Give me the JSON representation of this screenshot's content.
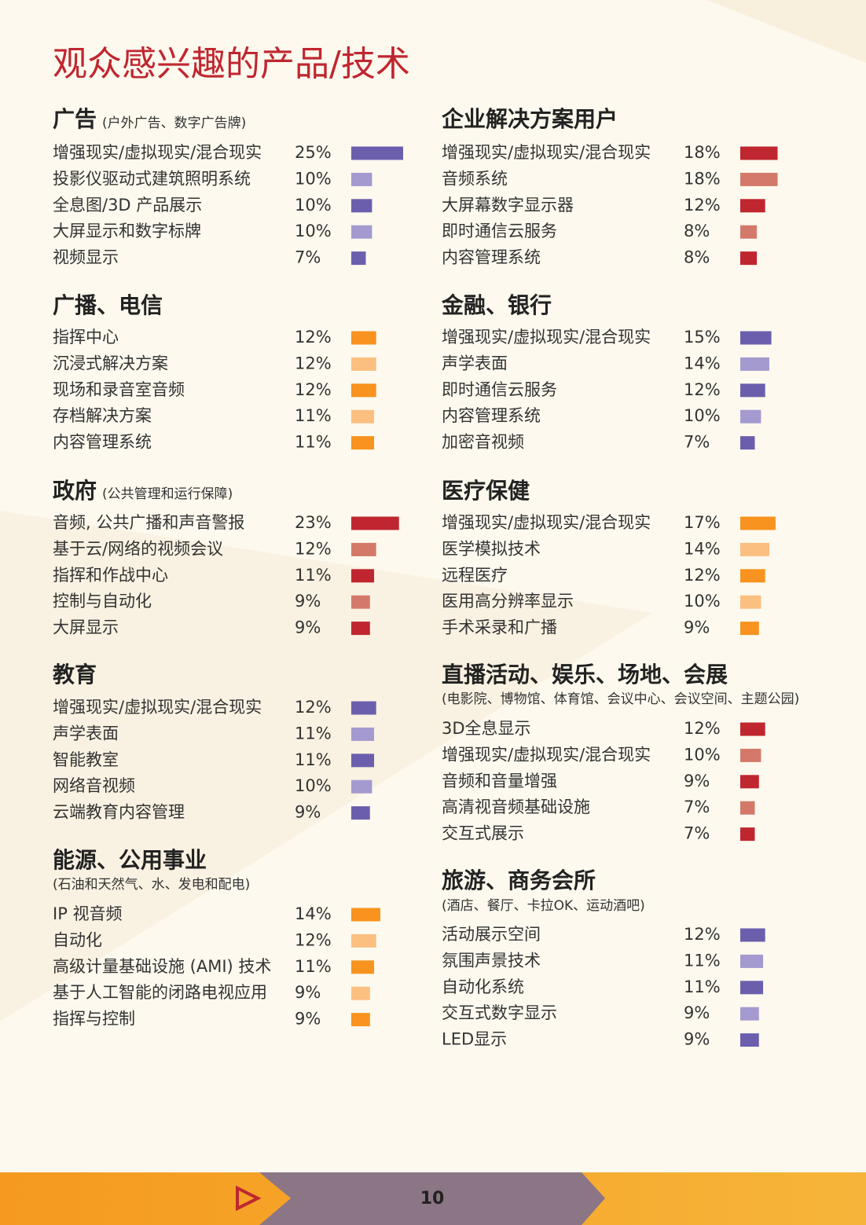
{
  "title": "观众感兴趣的产品/技术",
  "sections": [
    {
      "heading": "广告",
      "subtitle": "(户外广告、数字广告牌)",
      "colors": [
        "#6b5fad",
        "#a49ad0"
      ],
      "items": [
        {
          "label": "增强现实/虚拟现实/混合现实",
          "value": 25,
          "value_label": "25%"
        },
        {
          "label": "投影仪驱动式建筑照明系统",
          "value": 10,
          "value_label": "10%"
        },
        {
          "label": "全息图/3D 产品展示",
          "value": 10,
          "value_label": "10%"
        },
        {
          "label": "大屏显示和数字标牌",
          "value": 10,
          "value_label": "10%"
        },
        {
          "label": "视频显示",
          "value": 7,
          "value_label": "7%"
        }
      ]
    },
    {
      "heading": "广播、电信",
      "colors": [
        "#f7931e",
        "#fbbf80"
      ],
      "items": [
        {
          "label": "指挥中心",
          "value": 12,
          "value_label": "12%"
        },
        {
          "label": "沉浸式解决方案",
          "value": 12,
          "value_label": "12%"
        },
        {
          "label": "现场和录音室音频",
          "value": 12,
          "value_label": "12%"
        },
        {
          "label": "存档解决方案",
          "value": 11,
          "value_label": "11%"
        },
        {
          "label": "内容管理系统",
          "value": 11,
          "value_label": "11%"
        }
      ]
    },
    {
      "heading": "政府",
      "subtitle": "(公共管理和运行保障)",
      "colors": [
        "#c0262f",
        "#d4796a"
      ],
      "items": [
        {
          "label": "音频, 公共广播和声音警报",
          "value": 23,
          "value_label": "23%"
        },
        {
          "label": "基于云/网络的视频会议",
          "value": 12,
          "value_label": "12%"
        },
        {
          "label": "指挥和作战中心",
          "value": 11,
          "value_label": "11%"
        },
        {
          "label": "控制与自动化",
          "value": 9,
          "value_label": "9%"
        },
        {
          "label": "大屏显示",
          "value": 9,
          "value_label": "9%"
        }
      ]
    },
    {
      "heading": "教育",
      "colors": [
        "#6b5fad",
        "#a49ad0"
      ],
      "items": [
        {
          "label": "增强现实/虚拟现实/混合现实",
          "value": 12,
          "value_label": "12%"
        },
        {
          "label": "声学表面",
          "value": 11,
          "value_label": "11%"
        },
        {
          "label": "智能教室",
          "value": 11,
          "value_label": "11%"
        },
        {
          "label": "网络音视频",
          "value": 10,
          "value_label": "10%"
        },
        {
          "label": "云端教育内容管理",
          "value": 9,
          "value_label": "9%"
        }
      ]
    },
    {
      "heading": "能源、公用事业",
      "subtitle": "(石油和天然气、水、发电和配电)",
      "colors": [
        "#f7931e",
        "#fbbf80"
      ],
      "items": [
        {
          "label": "IP 视音频",
          "value": 14,
          "value_label": "14%"
        },
        {
          "label": "自动化",
          "value": 12,
          "value_label": "12%"
        },
        {
          "label": "高级计量基础设施 (AMI) 技术",
          "value": 11,
          "value_label": "11%"
        },
        {
          "label": "基于人工智能的闭路电视应用",
          "value": 9,
          "value_label": "9%"
        },
        {
          "label": "指挥与控制",
          "value": 9,
          "value_label": "9%"
        }
      ]
    },
    {
      "heading": "企业解决方案用户",
      "colors": [
        "#c0262f",
        "#d4796a"
      ],
      "items": [
        {
          "label": "增强现实/虚拟现实/混合现实",
          "value": 18,
          "value_label": "18%"
        },
        {
          "label": "音频系统",
          "value": 18,
          "value_label": "18%"
        },
        {
          "label": "大屏幕数字显示器",
          "value": 12,
          "value_label": "12%"
        },
        {
          "label": "即时通信云服务",
          "value": 8,
          "value_label": "8%"
        },
        {
          "label": "内容管理系统",
          "value": 8,
          "value_label": "8%"
        }
      ]
    },
    {
      "heading": "金融、银行",
      "colors": [
        "#6b5fad",
        "#a49ad0"
      ],
      "items": [
        {
          "label": "增强现实/虚拟现实/混合现实",
          "value": 15,
          "value_label": "15%"
        },
        {
          "label": "声学表面",
          "value": 14,
          "value_label": "14%"
        },
        {
          "label": "即时通信云服务",
          "value": 12,
          "value_label": "12%"
        },
        {
          "label": "内容管理系统",
          "value": 10,
          "value_label": "10%"
        },
        {
          "label": "加密音视频",
          "value": 7,
          "value_label": "7%"
        }
      ]
    },
    {
      "heading": "医疗保健",
      "colors": [
        "#f7931e",
        "#fbbf80"
      ],
      "items": [
        {
          "label": "增强现实/虚拟现实/混合现实",
          "value": 17,
          "value_label": "17%"
        },
        {
          "label": "医学模拟技术",
          "value": 14,
          "value_label": "14%"
        },
        {
          "label": "远程医疗",
          "value": 12,
          "value_label": "12%"
        },
        {
          "label": "医用高分辨率显示",
          "value": 10,
          "value_label": "10%"
        },
        {
          "label": "手术采录和广播",
          "value": 9,
          "value_label": "9%"
        }
      ]
    },
    {
      "heading": "直播活动、娱乐、场地、会展",
      "subtitle": "(电影院、博物馆、体育馆、会议中心、会议空间、主题公园)",
      "colors": [
        "#c0262f",
        "#d4796a"
      ],
      "items": [
        {
          "label": "3D全息显示",
          "value": 12,
          "value_label": "12%"
        },
        {
          "label": "增强现实/虚拟现实/混合现实",
          "value": 10,
          "value_label": "10%"
        },
        {
          "label": "音频和音量增强",
          "value": 9,
          "value_label": "9%"
        },
        {
          "label": "高清视音频基础设施",
          "value": 7,
          "value_label": "7%"
        },
        {
          "label": "交互式展示",
          "value": 7,
          "value_label": "7%"
        }
      ]
    },
    {
      "heading": "旅游、商务会所",
      "subtitle": "(酒店、餐厅、卡拉OK、运动酒吧)",
      "colors": [
        "#6b5fad",
        "#a49ad0"
      ],
      "items": [
        {
          "label": "活动展示空间",
          "value": 12,
          "value_label": "12%"
        },
        {
          "label": "氛围声景技术",
          "value": 11,
          "value_label": "11%"
        },
        {
          "label": "自动化系统",
          "value": 11,
          "value_label": "11%"
        },
        {
          "label": "交互式数字显示",
          "value": 9,
          "value_label": "9%"
        },
        {
          "label": "LED显示",
          "value": 9,
          "value_label": "9%"
        }
      ]
    }
  ],
  "page_number": "10"
}
